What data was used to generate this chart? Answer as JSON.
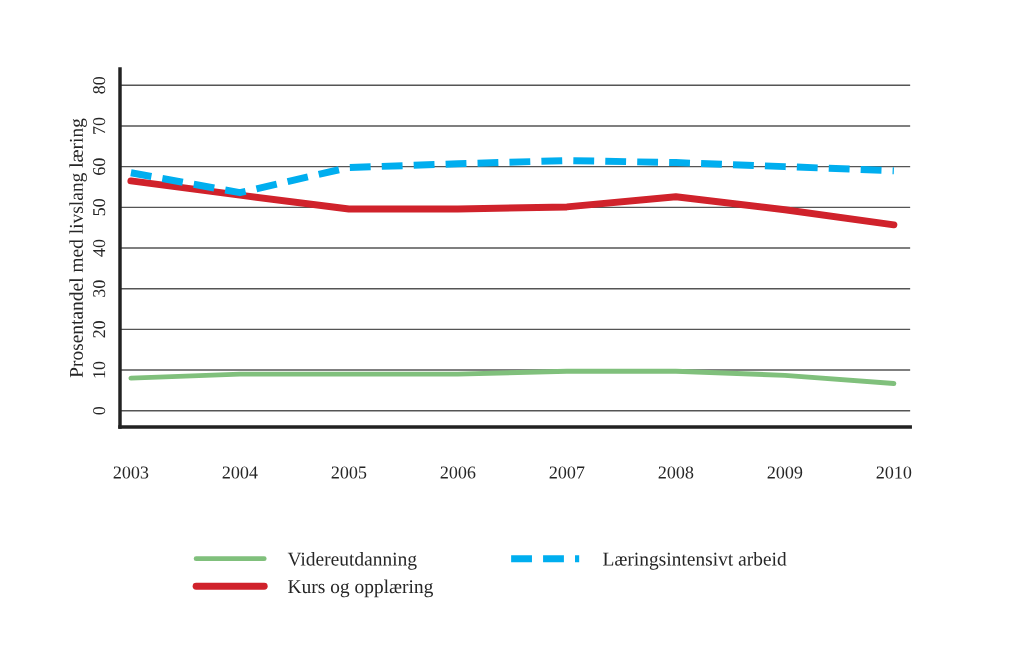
{
  "chart_data": {
    "type": "line",
    "ylabel": "Prosentandel med livslang læring",
    "x": [
      2003,
      2004,
      2005,
      2006,
      2007,
      2008,
      2009,
      2010
    ],
    "xlim": [
      2002.9,
      2010.15
    ],
    "xticks": [
      2003,
      2004,
      2005,
      2006,
      2007,
      2008,
      2009,
      2010
    ],
    "ylim": [
      -4,
      84
    ],
    "yticks": [
      0,
      10,
      20,
      30,
      40,
      50,
      60,
      70,
      80
    ],
    "grid": "y",
    "legend": "bottom",
    "marker": "none",
    "series": [
      {
        "name": "Videreutdanning",
        "color": "#80c07c",
        "line_style": "solid",
        "values": [
          8,
          9,
          9,
          9,
          9.7,
          9.7,
          8.7,
          6.7
        ]
      },
      {
        "name": "Kurs og opplæring",
        "color": "#d0222b",
        "line_style": "solid",
        "values": [
          56.5,
          53,
          49.6,
          49.6,
          50.1,
          52.6,
          49.4,
          45.7
        ]
      },
      {
        "name": "Læringsintensivt arbeid",
        "color": "#00aeef",
        "line_style": "dashed",
        "values": [
          58.5,
          53.6,
          59.8,
          60.7,
          61.5,
          61,
          60,
          59
        ]
      }
    ]
  }
}
